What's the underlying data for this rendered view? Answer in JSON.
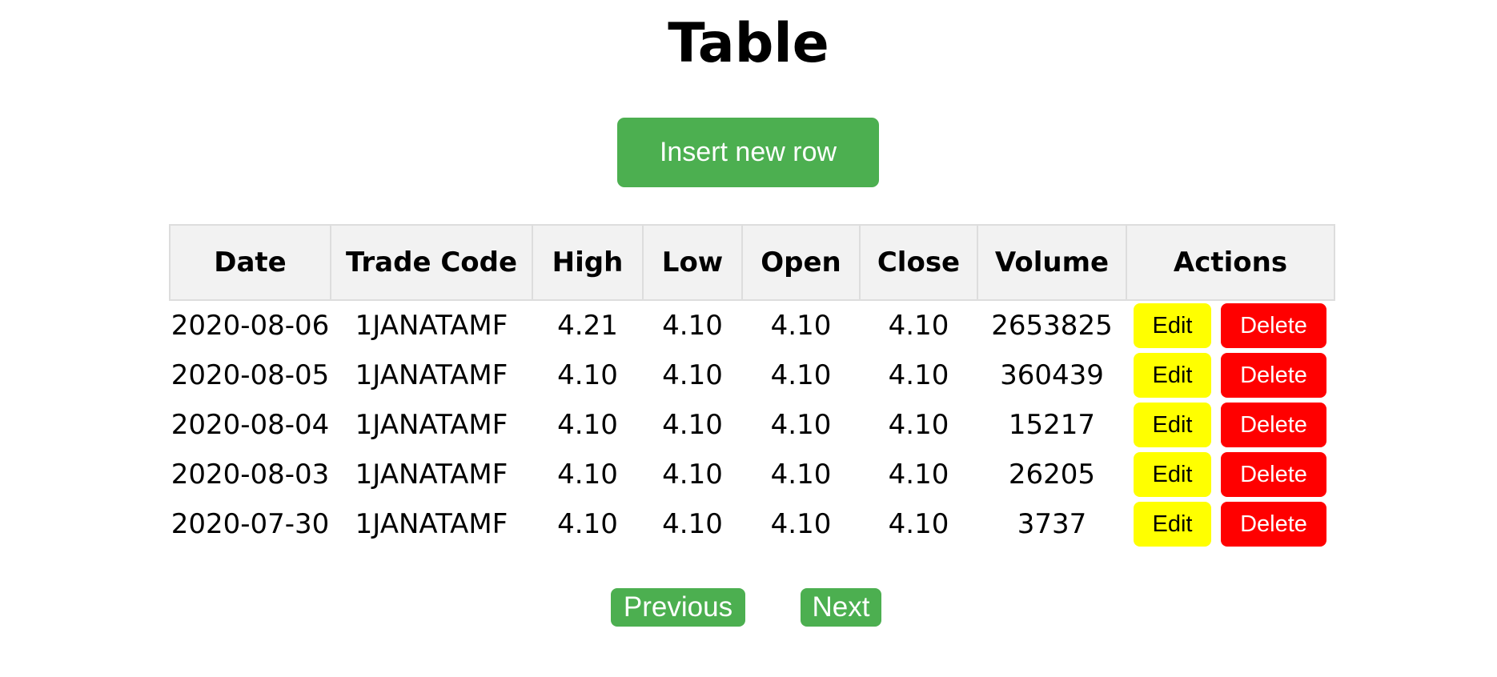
{
  "page": {
    "title": "Table"
  },
  "toolbar": {
    "insert_label": "Insert new row"
  },
  "table": {
    "headers": [
      "Date",
      "Trade Code",
      "High",
      "Low",
      "Open",
      "Close",
      "Volume",
      "Actions"
    ],
    "rows": [
      {
        "date": "2020-08-06",
        "trade_code": "1JANATAMF",
        "high": "4.21",
        "low": "4.10",
        "open": "4.10",
        "close": "4.10",
        "volume": "2653825"
      },
      {
        "date": "2020-08-05",
        "trade_code": "1JANATAMF",
        "high": "4.10",
        "low": "4.10",
        "open": "4.10",
        "close": "4.10",
        "volume": "360439"
      },
      {
        "date": "2020-08-04",
        "trade_code": "1JANATAMF",
        "high": "4.10",
        "low": "4.10",
        "open": "4.10",
        "close": "4.10",
        "volume": "15217"
      },
      {
        "date": "2020-08-03",
        "trade_code": "1JANATAMF",
        "high": "4.10",
        "low": "4.10",
        "open": "4.10",
        "close": "4.10",
        "volume": "26205"
      },
      {
        "date": "2020-07-30",
        "trade_code": "1JANATAMF",
        "high": "4.10",
        "low": "4.10",
        "open": "4.10",
        "close": "4.10",
        "volume": "3737"
      }
    ],
    "edit_label": "Edit",
    "delete_label": "Delete"
  },
  "pagination": {
    "previous_label": "Previous",
    "next_label": "Next"
  },
  "colors": {
    "primary_green": "#4CAF50",
    "edit_yellow": "#FFFF00",
    "delete_red": "#FF0000",
    "header_bg": "#F2F2F2"
  }
}
